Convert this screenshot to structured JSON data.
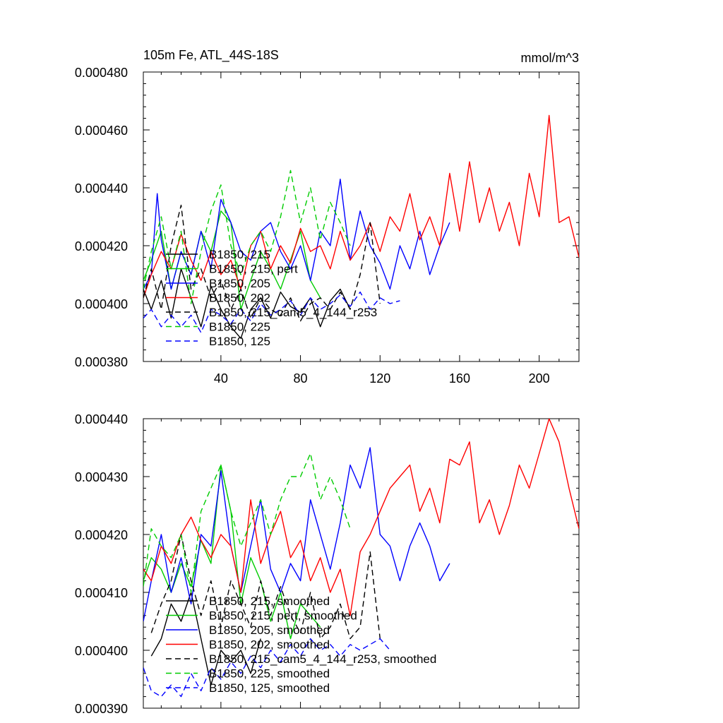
{
  "chart_data": [
    {
      "type": "line",
      "title": "105m Fe, ATL_44S-18S",
      "units": "mmol/m^3",
      "xlim": [
        1,
        220
      ],
      "ylim": [
        0.00038,
        0.00048
      ],
      "x_ticks": [
        40,
        80,
        120,
        160,
        200
      ],
      "y_ticks": [
        "0.000380",
        "0.000400",
        "0.000420",
        "0.000440",
        "0.000460",
        "0.000480"
      ],
      "legend_position": "lower-left",
      "series": [
        {
          "name": "B1850, 215",
          "color": "#000000",
          "dashed": false,
          "x": [
            1,
            5,
            10,
            15,
            20,
            25,
            30,
            35,
            40,
            45,
            50,
            55,
            60,
            65,
            70,
            75,
            80,
            85,
            90,
            95,
            100,
            105
          ],
          "y": [
            0.000405,
            0.000398,
            0.000408,
            0.000395,
            0.000412,
            0.000402,
            0.000392,
            0.000406,
            0.000398,
            0.000392,
            0.000388,
            0.000398,
            0.000402,
            0.000395,
            0.000404,
            0.000399,
            0.000397,
            0.000402,
            0.000392,
            0.000401,
            0.000405,
            0.000398
          ]
        },
        {
          "name": "B1850, 215, pert",
          "color": "#00cc00",
          "dashed": false,
          "x": [
            1,
            5,
            10,
            15,
            20,
            25,
            30,
            35,
            40,
            45,
            50,
            55,
            60,
            65,
            70,
            75,
            80,
            85,
            90
          ],
          "y": [
            0.000408,
            0.000415,
            0.000425,
            0.000405,
            0.000418,
            0.00041,
            0.000425,
            0.000418,
            0.000432,
            0.000428,
            0.000398,
            0.000408,
            0.000418,
            0.000412,
            0.000405,
            0.000415,
            0.000425,
            0.000408,
            0.000402
          ]
        },
        {
          "name": "B1850, 205",
          "color": "#0000ff",
          "dashed": false,
          "x": [
            1,
            5,
            8,
            10,
            15,
            20,
            25,
            30,
            35,
            40,
            45,
            50,
            55,
            60,
            65,
            70,
            75,
            80,
            85,
            90,
            95,
            100,
            105,
            110,
            115,
            120,
            125,
            130,
            135,
            140,
            145,
            150,
            155
          ],
          "y": [
            0.000405,
            0.00041,
            0.000438,
            0.000422,
            0.000405,
            0.000418,
            0.00041,
            0.000425,
            0.000412,
            0.000436,
            0.000428,
            0.000418,
            0.000415,
            0.000425,
            0.000428,
            0.000418,
            0.000412,
            0.00042,
            0.000408,
            0.000425,
            0.00042,
            0.000443,
            0.000415,
            0.000432,
            0.00042,
            0.000414,
            0.000405,
            0.00042,
            0.000412,
            0.000425,
            0.00041,
            0.00042,
            0.000428
          ]
        },
        {
          "name": "B1850, 202",
          "color": "#ff0000",
          "dashed": false,
          "x": [
            1,
            5,
            10,
            15,
            20,
            25,
            30,
            35,
            40,
            45,
            50,
            55,
            60,
            65,
            70,
            75,
            80,
            85,
            90,
            95,
            100,
            105,
            110,
            115,
            120,
            125,
            130,
            135,
            140,
            145,
            150,
            155,
            160,
            165,
            170,
            175,
            180,
            185,
            190,
            195,
            200,
            205,
            210,
            215,
            220
          ],
          "y": [
            0.000402,
            0.00041,
            0.000418,
            0.000412,
            0.000424,
            0.000415,
            0.000408,
            0.000418,
            0.00041,
            0.000415,
            0.000405,
            0.00042,
            0.000425,
            0.000412,
            0.00042,
            0.000414,
            0.000426,
            0.000418,
            0.00042,
            0.000412,
            0.000425,
            0.000415,
            0.00042,
            0.000428,
            0.000418,
            0.00043,
            0.000425,
            0.000438,
            0.000422,
            0.00043,
            0.00042,
            0.000445,
            0.000425,
            0.000449,
            0.000428,
            0.00044,
            0.000425,
            0.000435,
            0.00042,
            0.000445,
            0.00043,
            0.000465,
            0.000428,
            0.00043,
            0.000416
          ]
        },
        {
          "name": "B1850, 215_cam5_4_144_r253",
          "color": "#000000",
          "dashed": true,
          "x": [
            1,
            5,
            10,
            15,
            20,
            25,
            30,
            35,
            40,
            45,
            50,
            55,
            60,
            65,
            70,
            75,
            80,
            85,
            90,
            95,
            100,
            105,
            110,
            115,
            120
          ],
          "y": [
            0.000402,
            0.000412,
            0.000398,
            0.00042,
            0.000434,
            0.000405,
            0.000412,
            0.000402,
            0.000408,
            0.000398,
            0.000405,
            0.000395,
            0.000402,
            0.000398,
            0.000396,
            0.000402,
            0.000394,
            0.0004,
            0.000402,
            0.000398,
            0.000404,
            0.000398,
            0.00041,
            0.000428,
            0.0004
          ]
        },
        {
          "name": "B1850, 225",
          "color": "#00cc00",
          "dashed": true,
          "x": [
            1,
            5,
            10,
            15,
            20,
            25,
            30,
            35,
            40,
            45,
            50,
            55,
            60,
            65,
            70,
            75,
            80,
            85,
            90,
            95,
            100,
            105
          ],
          "y": [
            0.000405,
            0.000418,
            0.00043,
            0.000412,
            0.000425,
            0.0004,
            0.000418,
            0.000432,
            0.000441,
            0.00042,
            0.00041,
            0.00042,
            0.000425,
            0.000418,
            0.00043,
            0.000446,
            0.000428,
            0.00044,
            0.000422,
            0.000435,
            0.000428,
            0.00042
          ]
        },
        {
          "name": "B1850, 125",
          "color": "#0000ff",
          "dashed": true,
          "x": [
            1,
            5,
            10,
            15,
            20,
            25,
            30,
            35,
            40,
            45,
            50,
            55,
            60,
            65,
            70,
            75,
            80,
            85,
            90,
            95,
            100,
            105,
            110,
            115,
            120,
            125,
            130
          ],
          "y": [
            0.000395,
            0.000398,
            0.000392,
            0.000396,
            0.000392,
            0.000396,
            0.00039,
            0.000398,
            0.000396,
            0.000393,
            0.000398,
            0.000394,
            0.0004,
            0.000396,
            0.000398,
            0.000401,
            0.000396,
            0.000402,
            0.000398,
            0.0004,
            0.000403,
            0.000399,
            0.000404,
            0.000398,
            0.000402,
            0.0004,
            0.000401
          ]
        }
      ]
    },
    {
      "type": "line",
      "xlim": [
        1,
        220
      ],
      "ylim": [
        0.00039,
        0.00044
      ],
      "y_ticks": [
        "0.000390",
        "0.000400",
        "0.000410",
        "0.000420",
        "0.000430",
        "0.000440"
      ],
      "legend_position": "lower-left",
      "series": [
        {
          "name": "B1850, 215, smoothed",
          "color": "#000000",
          "dashed": false,
          "x": [
            5,
            10,
            15,
            20,
            25,
            30,
            35,
            40,
            45,
            50,
            55,
            60
          ],
          "y": [
            0.000399,
            0.000402,
            0.000408,
            0.000405,
            0.00041,
            0.000402,
            0.000394,
            0.0004,
            0.000398,
            0.0004,
            0.000396,
            0.000402
          ]
        },
        {
          "name": "B1850, 215, pert, smoothed",
          "color": "#00cc00",
          "dashed": false,
          "x": [
            1,
            5,
            10,
            15,
            20,
            25,
            30,
            35,
            40,
            45,
            50,
            55,
            60,
            65,
            70,
            75,
            80,
            85,
            90
          ],
          "y": [
            0.000412,
            0.000416,
            0.000414,
            0.00041,
            0.000415,
            0.000411,
            0.000419,
            0.000415,
            0.000432,
            0.000424,
            0.000408,
            0.000416,
            0.000412,
            0.000405,
            0.00041,
            0.000402,
            0.000408,
            0.000406,
            0.000404
          ]
        },
        {
          "name": "B1850, 205, smoothed",
          "color": "#0000ff",
          "dashed": false,
          "x": [
            1,
            5,
            10,
            15,
            20,
            25,
            30,
            35,
            40,
            45,
            50,
            55,
            60,
            65,
            70,
            75,
            80,
            85,
            90,
            95,
            100,
            105,
            110,
            115,
            120,
            125,
            130,
            135,
            140,
            145,
            150,
            155
          ],
          "y": [
            0.000405,
            0.000412,
            0.00042,
            0.00041,
            0.000416,
            0.000408,
            0.00042,
            0.000418,
            0.000431,
            0.000418,
            0.00041,
            0.000418,
            0.000426,
            0.000414,
            0.00041,
            0.000415,
            0.000412,
            0.000426,
            0.00042,
            0.000414,
            0.000422,
            0.000432,
            0.000428,
            0.000435,
            0.00042,
            0.000418,
            0.000412,
            0.000418,
            0.000422,
            0.000418,
            0.000412,
            0.000415
          ]
        },
        {
          "name": "B1850, 202, smoothed",
          "color": "#ff0000",
          "dashed": false,
          "x": [
            1,
            5,
            10,
            15,
            20,
            25,
            30,
            35,
            40,
            45,
            50,
            55,
            60,
            65,
            70,
            75,
            80,
            85,
            90,
            95,
            100,
            105,
            110,
            115,
            120,
            125,
            130,
            135,
            140,
            145,
            150,
            155,
            160,
            165,
            170,
            175,
            180,
            185,
            190,
            195,
            200,
            205,
            210,
            215,
            220
          ],
          "y": [
            0.000414,
            0.000412,
            0.000418,
            0.000415,
            0.00042,
            0.000423,
            0.000419,
            0.000416,
            0.00042,
            0.000418,
            0.00041,
            0.000426,
            0.000415,
            0.00042,
            0.000424,
            0.000416,
            0.000419,
            0.000412,
            0.000416,
            0.00041,
            0.000414,
            0.000406,
            0.000417,
            0.00042,
            0.000424,
            0.000428,
            0.00043,
            0.000432,
            0.000424,
            0.000428,
            0.000422,
            0.000433,
            0.000432,
            0.000436,
            0.000422,
            0.000426,
            0.00042,
            0.000425,
            0.000432,
            0.000428,
            0.000434,
            0.00044,
            0.000436,
            0.000428,
            0.000421
          ]
        },
        {
          "name": "B1850, 215_cam5_4_144_r253, smoothed",
          "color": "#000000",
          "dashed": true,
          "x": [
            5,
            10,
            15,
            20,
            25,
            30,
            35,
            40,
            45,
            50,
            55,
            60,
            65,
            70,
            75,
            80,
            85,
            90,
            95,
            100,
            105,
            110,
            115,
            120
          ],
          "y": [
            0.000403,
            0.000408,
            0.000412,
            0.00042,
            0.000412,
            0.000406,
            0.000412,
            0.000404,
            0.000412,
            0.000408,
            0.000404,
            0.000412,
            0.000406,
            0.000411,
            0.000406,
            0.000403,
            0.00041,
            0.000402,
            0.000404,
            0.000408,
            0.000402,
            0.000404,
            0.000417,
            0.000402
          ]
        },
        {
          "name": "B1850, 225, smoothed",
          "color": "#00cc00",
          "dashed": true,
          "x": [
            1,
            5,
            10,
            15,
            20,
            25,
            30,
            35,
            40,
            45,
            50,
            55,
            60,
            65,
            70,
            75,
            80,
            85,
            90,
            95,
            100,
            105
          ],
          "y": [
            0.000411,
            0.000421,
            0.000418,
            0.000416,
            0.00042,
            0.00041,
            0.000424,
            0.000428,
            0.000432,
            0.000424,
            0.000418,
            0.000422,
            0.000426,
            0.00042,
            0.000426,
            0.00043,
            0.00043,
            0.000434,
            0.000426,
            0.00043,
            0.000426,
            0.000421
          ]
        },
        {
          "name": "B1850, 125, smoothed",
          "color": "#0000ff",
          "dashed": true,
          "x": [
            1,
            5,
            10,
            15,
            20,
            25,
            30,
            35,
            40,
            45,
            50,
            55,
            60,
            65,
            70,
            75,
            80,
            85,
            90,
            95,
            100,
            105,
            110,
            115,
            120,
            125
          ],
          "y": [
            0.000397,
            0.000393,
            0.000392,
            0.000394,
            0.000392,
            0.000396,
            0.000393,
            0.000397,
            0.000395,
            0.000398,
            0.000396,
            0.000399,
            0.000397,
            0.0004,
            0.000398,
            0.000401,
            0.000399,
            0.000402,
            0.0004,
            0.000401,
            0.000399,
            0.000401,
            0.0004,
            0.000401,
            0.000402,
            0.0004
          ]
        }
      ]
    }
  ]
}
